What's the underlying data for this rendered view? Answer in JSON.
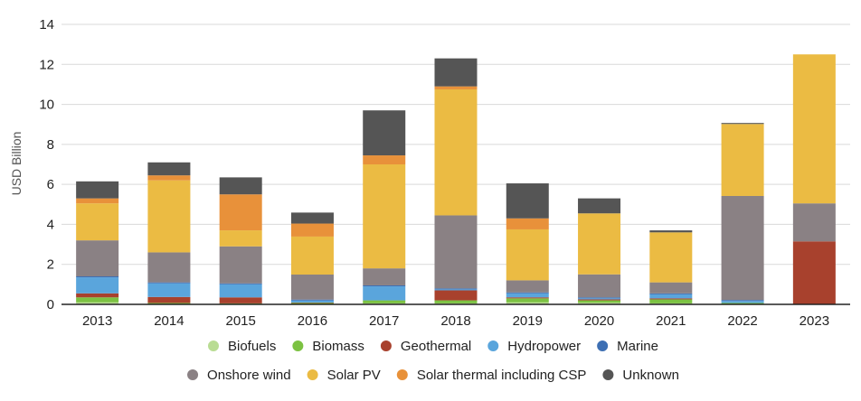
{
  "chart_data": {
    "type": "bar",
    "stacked": true,
    "ylabel": "USD Billion",
    "ylim": [
      0,
      14
    ],
    "yticks": [
      0,
      2,
      4,
      6,
      8,
      10,
      12,
      14
    ],
    "grid": "horizontal",
    "legend_position": "bottom",
    "categories": [
      "2013",
      "2014",
      "2015",
      "2016",
      "2017",
      "2018",
      "2019",
      "2020",
      "2021",
      "2022",
      "2023"
    ],
    "series": [
      {
        "name": "Biofuels",
        "color": "#b9dc93",
        "values": [
          0.1,
          0.02,
          0.02,
          0.02,
          0.05,
          0.05,
          0.1,
          0.08,
          0.05,
          0.02,
          0.0
        ]
      },
      {
        "name": "Biomass",
        "color": "#7cc242",
        "values": [
          0.25,
          0.05,
          0.03,
          0.05,
          0.15,
          0.15,
          0.2,
          0.12,
          0.2,
          0.05,
          0.0
        ]
      },
      {
        "name": "Geothermal",
        "color": "#a8412d",
        "values": [
          0.2,
          0.3,
          0.3,
          0.02,
          0.0,
          0.5,
          0.05,
          0.05,
          0.05,
          0.0,
          3.15
        ]
      },
      {
        "name": "Hydropower",
        "color": "#5aa5dc",
        "values": [
          0.8,
          0.68,
          0.65,
          0.1,
          0.7,
          0.05,
          0.2,
          0.05,
          0.2,
          0.1,
          0.0
        ]
      },
      {
        "name": "Marine",
        "color": "#3d6fb3",
        "values": [
          0.05,
          0.05,
          0.05,
          0.05,
          0.05,
          0.05,
          0.05,
          0.05,
          0.05,
          0.05,
          0.0
        ]
      },
      {
        "name": "Onshore wind",
        "color": "#8a8184",
        "values": [
          1.8,
          1.5,
          1.85,
          1.25,
          0.85,
          3.65,
          0.6,
          1.15,
          0.55,
          5.2,
          1.9
        ]
      },
      {
        "name": "Solar PV",
        "color": "#ebbb43",
        "values": [
          1.85,
          3.6,
          0.8,
          1.9,
          5.2,
          6.3,
          2.55,
          3.05,
          2.5,
          3.6,
          7.45
        ]
      },
      {
        "name": "Solar thermal including CSP",
        "color": "#e8913a",
        "values": [
          0.25,
          0.25,
          1.8,
          0.65,
          0.45,
          0.15,
          0.55,
          0.0,
          0.0,
          0.0,
          0.0
        ]
      },
      {
        "name": "Unknown",
        "color": "#555555",
        "values": [
          0.85,
          0.65,
          0.85,
          0.55,
          2.25,
          1.4,
          1.75,
          0.75,
          0.1,
          0.05,
          0.0
        ]
      }
    ]
  }
}
